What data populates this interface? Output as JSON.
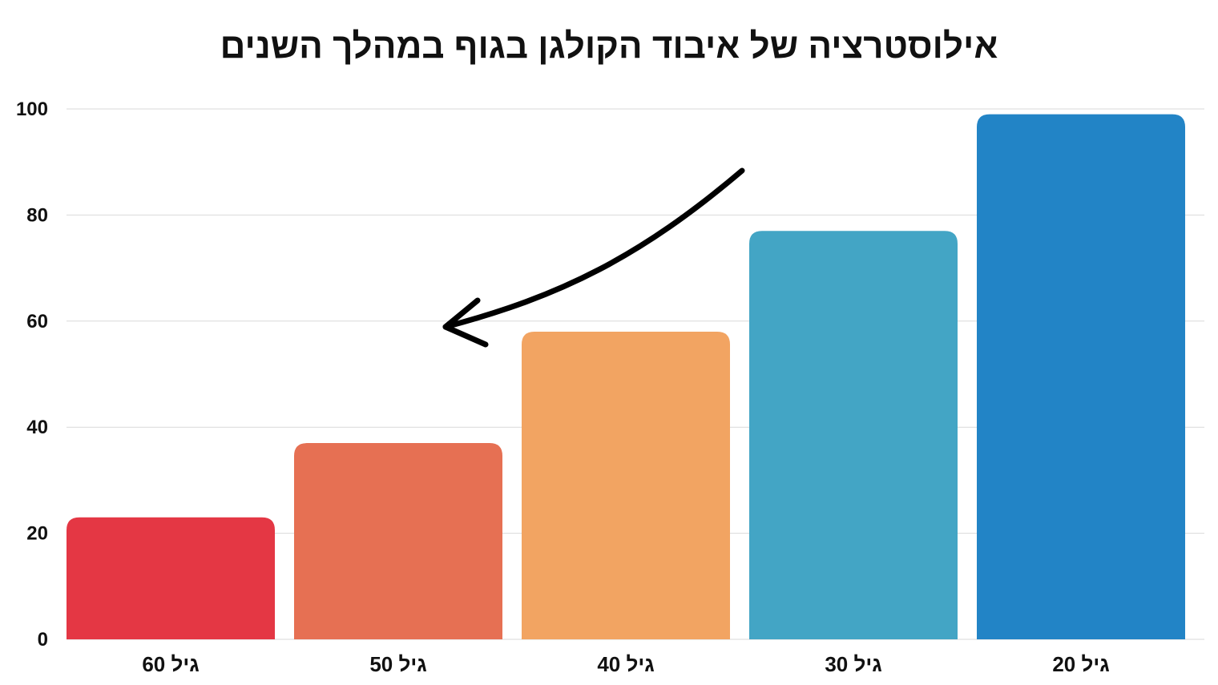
{
  "chart_data": {
    "type": "bar",
    "title": "אילוסטרציה של איבוד הקולגן בגוף במהלך השנים",
    "xlabel": "",
    "ylabel": "",
    "categories": [
      "גיל 60",
      "גיל 50",
      "גיל 40",
      "גיל 30",
      "גיל 20"
    ],
    "values": [
      23,
      37,
      58,
      77,
      99
    ],
    "colors": [
      "#e43744",
      "#e67053",
      "#f2a462",
      "#43a5c5",
      "#2284c6"
    ],
    "ylim": [
      0,
      100
    ],
    "yticks": [
      "0",
      "20",
      "40",
      "60",
      "80",
      "100"
    ],
    "grid": true,
    "legend": "none",
    "annotation": {
      "type": "arrow",
      "direction": "decreasing-with-age",
      "color": "#000000"
    }
  }
}
